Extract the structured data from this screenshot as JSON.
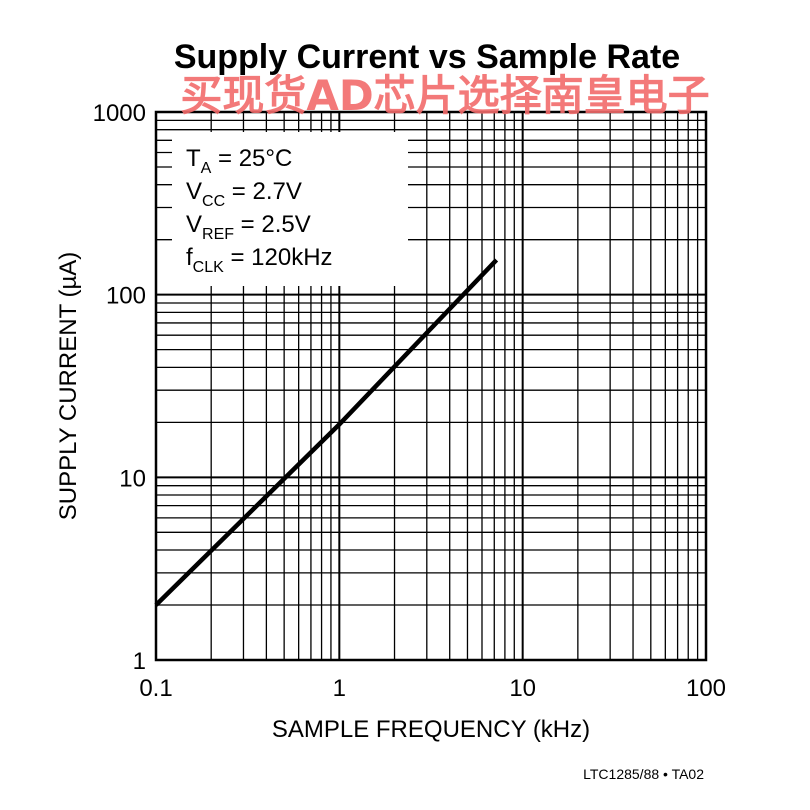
{
  "chart_data": {
    "type": "line",
    "title": "Supply Current vs Sample Rate",
    "xlabel": "SAMPLE FREQUENCY (kHz)",
    "ylabel": "SUPPLY CURRENT (µA)",
    "x_scale": "log",
    "y_scale": "log",
    "xlim": [
      0.1,
      100
    ],
    "ylim": [
      1,
      1000
    ],
    "x_ticks": [
      "0.1",
      "1",
      "10",
      "100"
    ],
    "y_ticks": [
      "1",
      "10",
      "100",
      "1000"
    ],
    "grid": true,
    "series": [
      {
        "x": [
          0.1,
          1,
          7.2
        ],
        "y": [
          2.0,
          19.5,
          155
        ]
      }
    ],
    "conditions": [
      {
        "main": "T",
        "sub": "A",
        "rest": " = 25°C"
      },
      {
        "main": "V",
        "sub": "CC",
        "rest": " = 2.7V"
      },
      {
        "main": "V",
        "sub": "REF",
        "rest": " = 2.5V"
      },
      {
        "main": "f",
        "sub": "CLK",
        "rest": " = 120kHz"
      }
    ]
  },
  "part_number": "LTC1285/88 • TA02",
  "watermark": "买现货AD芯片选择南皇电子",
  "colors": {
    "line": "#000000",
    "grid": "#000000",
    "watermark": "#f26b6b"
  }
}
